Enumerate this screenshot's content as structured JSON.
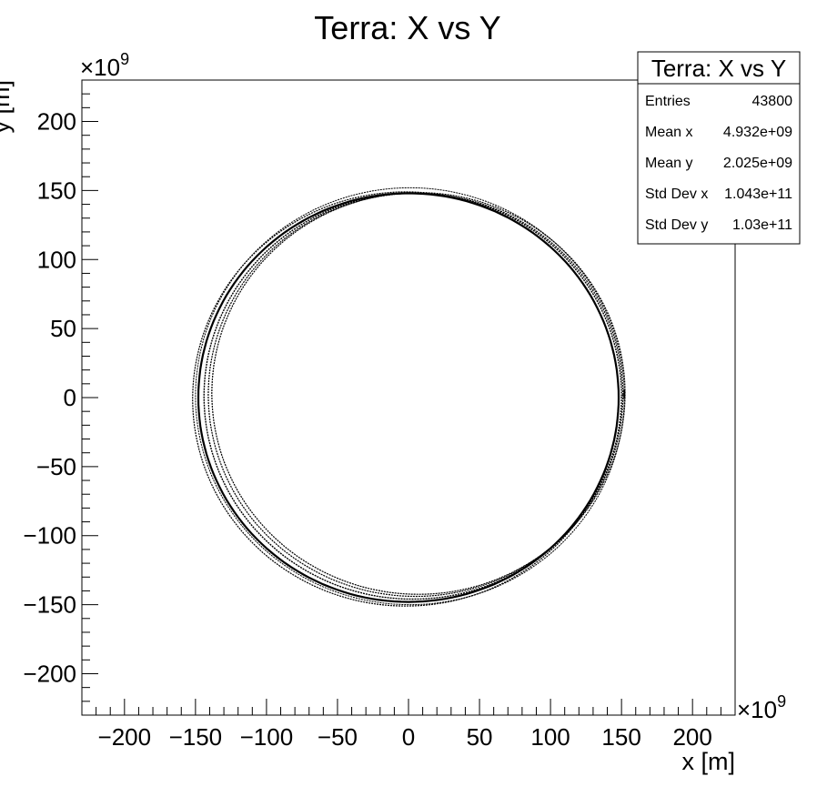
{
  "chart_data": {
    "type": "scatter",
    "title": "Terra: X vs Y",
    "xlabel": "x [m]",
    "ylabel": "y [m]",
    "x_multiplier": "×10",
    "x_exponent": "9",
    "y_multiplier": "×10",
    "y_exponent": "9",
    "xlim": [
      -230,
      230
    ],
    "ylim": [
      -230,
      230
    ],
    "x_ticks": [
      -200,
      -150,
      -100,
      -50,
      0,
      50,
      100,
      150,
      200
    ],
    "y_ticks": [
      -200,
      -150,
      -100,
      -50,
      0,
      50,
      100,
      150,
      200
    ],
    "x_tick_labels": [
      "−200",
      "−150",
      "−100",
      "−50",
      "0",
      "50",
      "100",
      "150",
      "200"
    ],
    "y_tick_labels": [
      "−200",
      "−150",
      "−100",
      "−50",
      "0",
      "50",
      "100",
      "150",
      "200"
    ],
    "grid": false,
    "legend": "none",
    "orbit": {
      "description_center": [
        0,
        0
      ],
      "radius_min": 146,
      "radius_max": 152,
      "start_point": [
        152,
        0
      ]
    },
    "stats_box": {
      "placement": "top-right",
      "title": "Terra: X vs Y",
      "rows": [
        {
          "label": "Entries",
          "value": "43800"
        },
        {
          "label": "Mean x",
          "value": "4.932e+09"
        },
        {
          "label": "Mean y",
          "value": "2.025e+09"
        },
        {
          "label": "Std Dev x",
          "value": "1.043e+11"
        },
        {
          "label": "Std Dev y",
          "value": "1.03e+11"
        }
      ]
    },
    "colors": {
      "marker": "#000000",
      "frame": "#000000",
      "background": "#ffffff"
    }
  }
}
